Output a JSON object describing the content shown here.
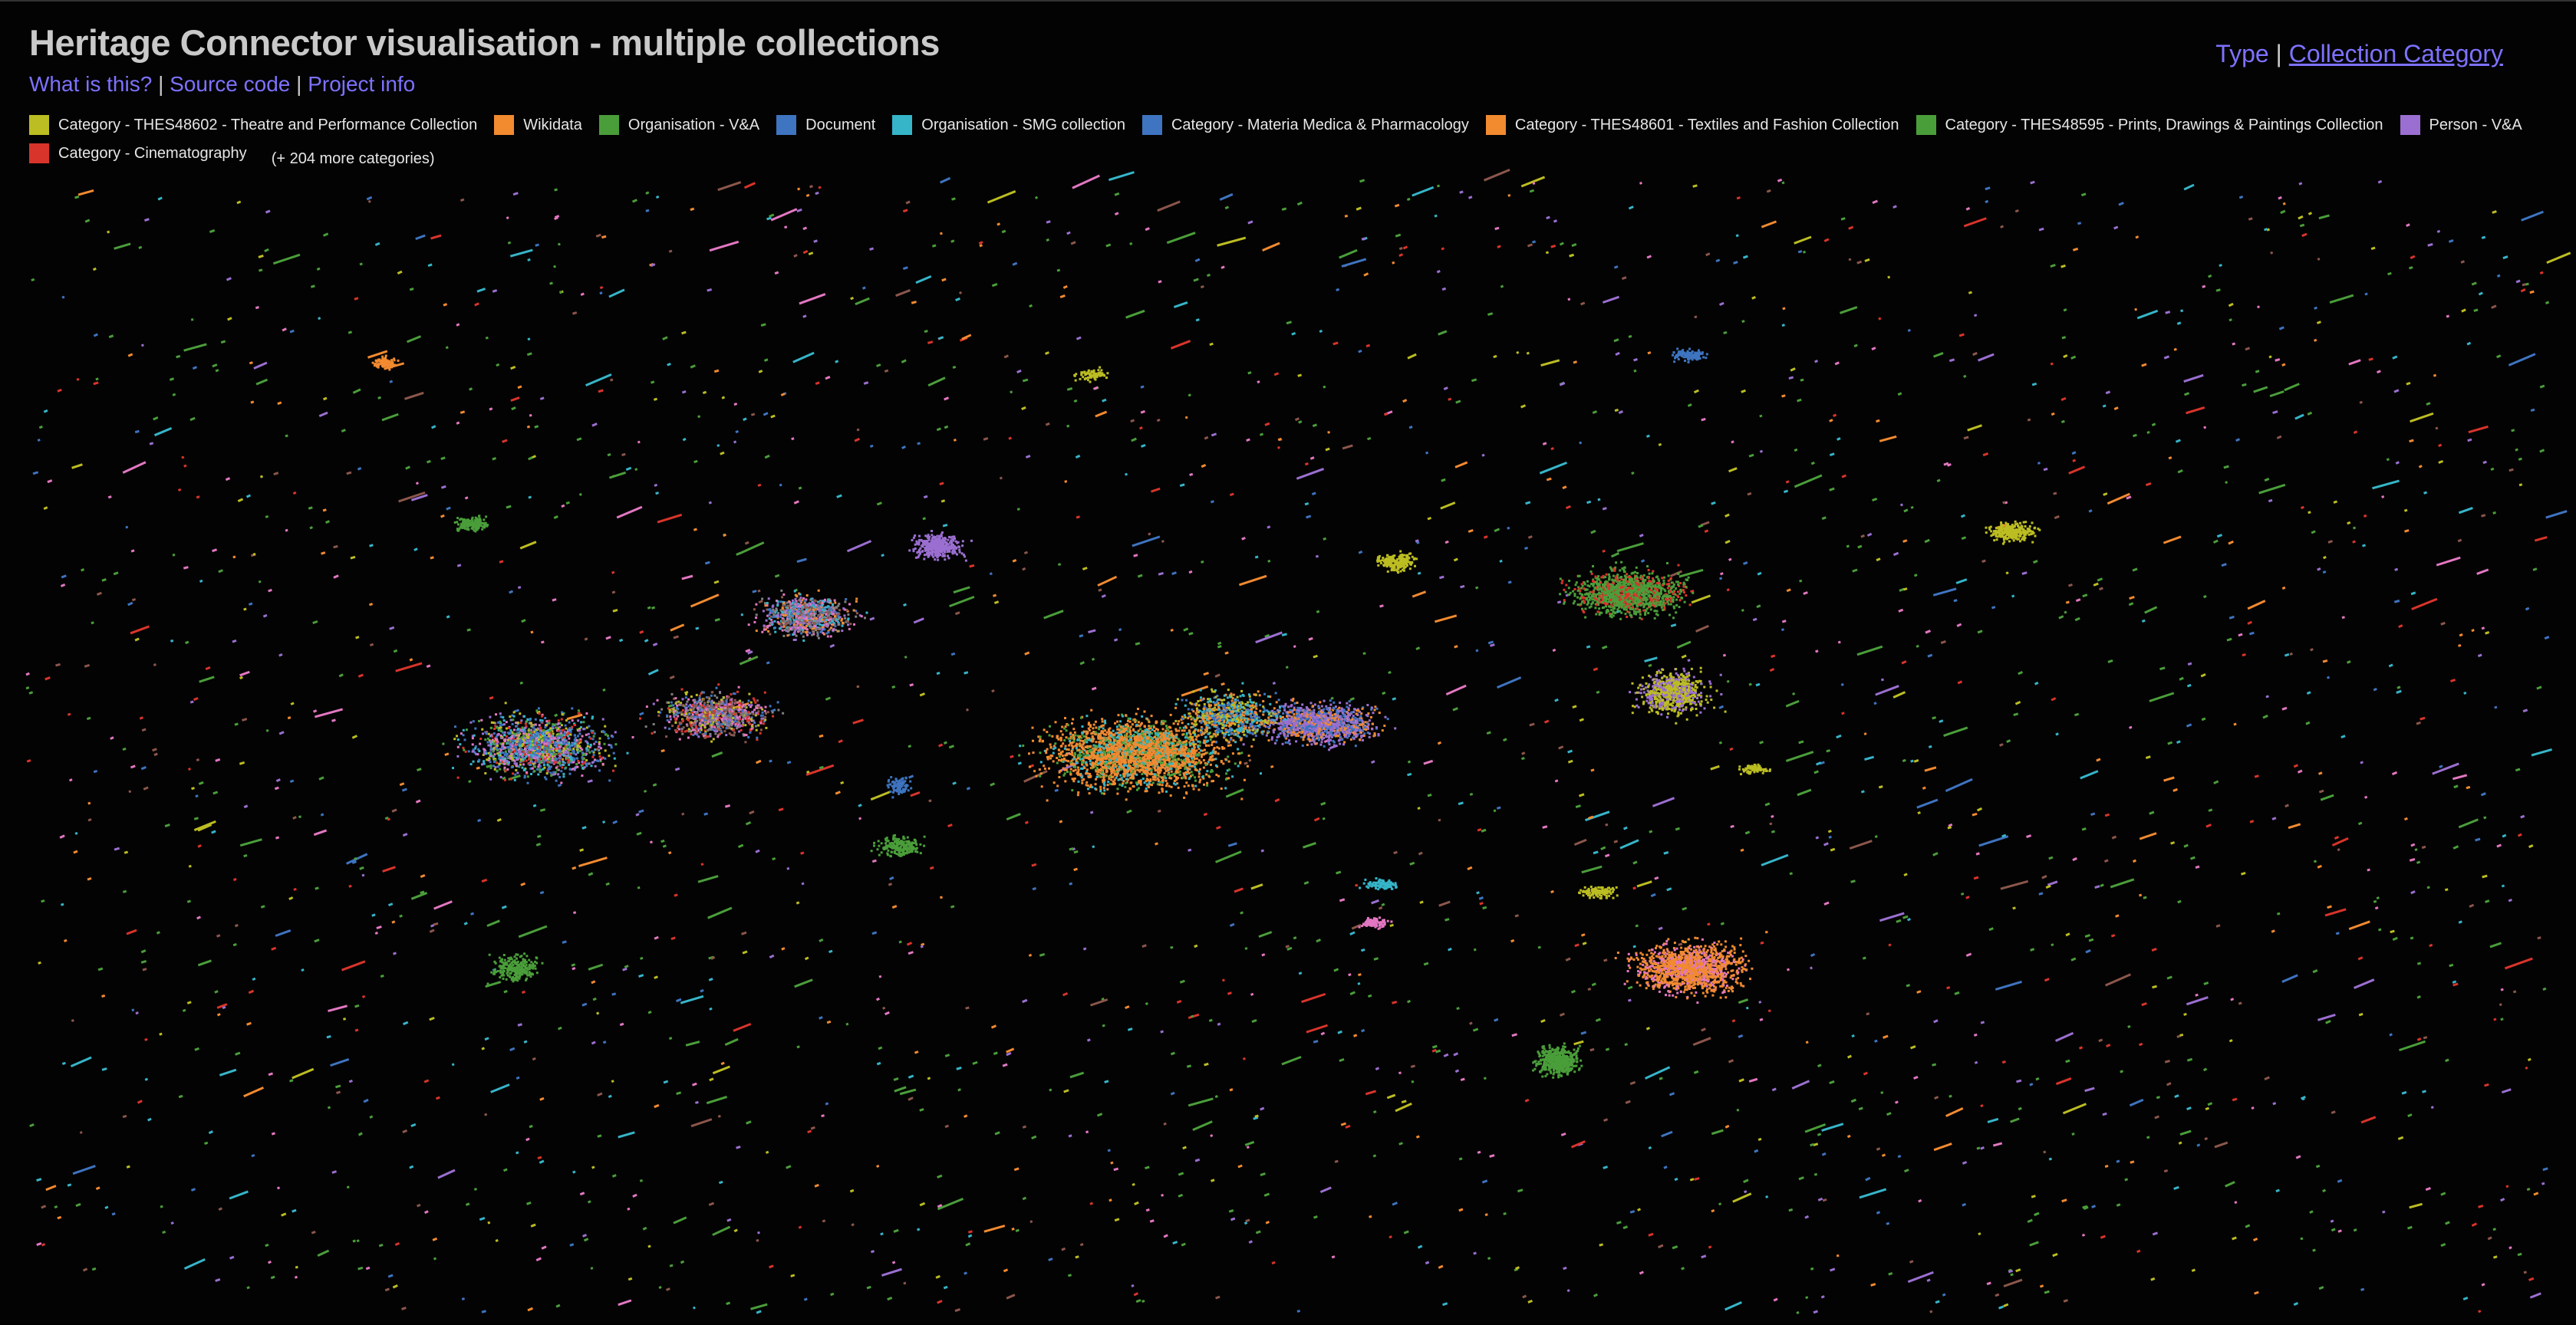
{
  "page": {
    "title": "Heritage Connector visualisation - multiple collections",
    "links": [
      "What is this?",
      "Source code",
      "Project info"
    ],
    "separator": "|"
  },
  "colour_by": {
    "options": [
      "Type",
      "Collection Category"
    ],
    "active": "Collection Category",
    "separator": "|"
  },
  "legend": {
    "items": [
      {
        "label": "Category - THES48602 - Theatre and Performance Collection",
        "color": "#bcbd22"
      },
      {
        "label": "Wikidata",
        "color": "#f28a30"
      },
      {
        "label": "Organisation - V&A",
        "color": "#4a9e3a"
      },
      {
        "label": "Document",
        "color": "#3e74c0"
      },
      {
        "label": "Organisation - SMG collection",
        "color": "#36b5c9"
      },
      {
        "label": "Category - Materia Medica & Pharmacology",
        "color": "#3e74c0"
      },
      {
        "label": "Category - THES48601 - Textiles and Fashion Collection",
        "color": "#f28a30"
      },
      {
        "label": "Category - THES48595 - Prints, Drawings & Paintings Collection",
        "color": "#4a9e3a"
      },
      {
        "label": "Person - V&A",
        "color": "#9b6fd1"
      },
      {
        "label": "Category - Cinematography",
        "color": "#d9342b"
      }
    ],
    "more": "(+ 204 more categories)"
  },
  "plot": {
    "background": "#000000",
    "extra_colors": [
      "#e377c2",
      "#8c564b",
      "#7f7f7f",
      "#d9342b"
    ]
  }
}
